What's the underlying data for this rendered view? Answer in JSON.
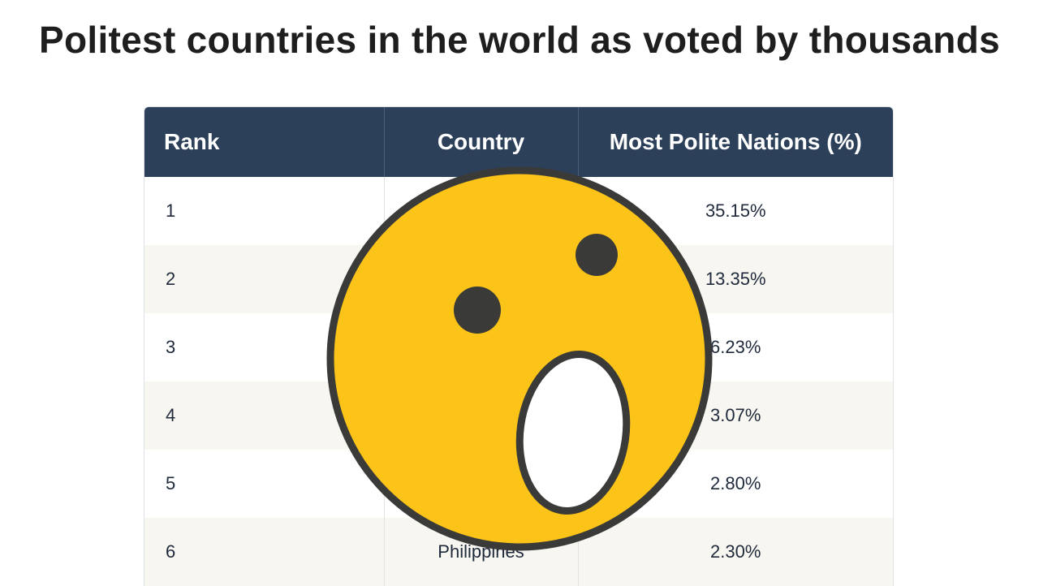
{
  "title": "Politest countries in the world as voted by thousands",
  "table": {
    "headers": [
      "Rank",
      "Country",
      "Most Polite Nations (%)"
    ],
    "rows": [
      {
        "rank": "1",
        "country": "",
        "pct": "35.15%"
      },
      {
        "rank": "2",
        "country": "",
        "pct": "13.35%"
      },
      {
        "rank": "3",
        "country": "",
        "pct": "6.23%"
      },
      {
        "rank": "4",
        "country": "",
        "pct": "3.07%"
      },
      {
        "rank": "5",
        "country": "",
        "pct": "2.80%"
      },
      {
        "rank": "6",
        "country": "Philippines",
        "pct": "2.30%"
      }
    ]
  },
  "overlay": {
    "icon": "astonished-face-icon",
    "colors": {
      "face": "#fcc419",
      "outline": "#3a3a38",
      "mouth": "#ffffff"
    }
  },
  "colors": {
    "header_bg": "#2d4059",
    "stripe_bg": "#f8f6f1",
    "title": "#1e1e1e"
  }
}
